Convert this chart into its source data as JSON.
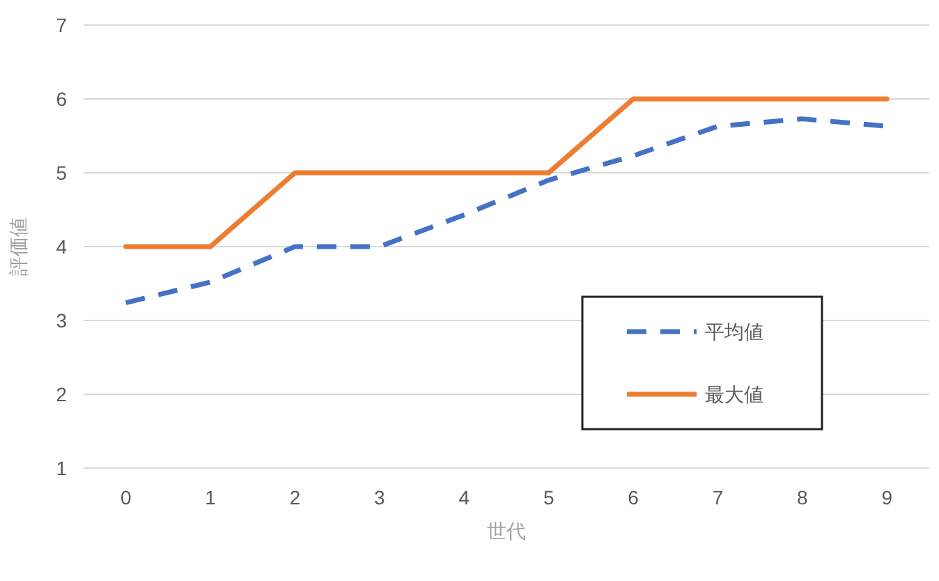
{
  "chart_data": {
    "type": "line",
    "xlabel": "世代",
    "ylabel": "評価値",
    "categories": [
      "0",
      "1",
      "2",
      "3",
      "4",
      "5",
      "6",
      "7",
      "8",
      "9"
    ],
    "series": [
      {
        "name": "平均値",
        "color": "#4472c4",
        "line_style": "dashed",
        "values": [
          3.24,
          3.52,
          4.0,
          4.0,
          4.43,
          4.9,
          5.23,
          5.63,
          5.73,
          5.63
        ]
      },
      {
        "name": "最大値",
        "color": "#ed7d31",
        "line_style": "solid",
        "values": [
          4,
          4,
          5,
          5,
          5,
          5,
          6,
          6,
          6,
          6
        ]
      }
    ],
    "ylim": [
      1,
      7
    ],
    "yticks": [
      1,
      2,
      3,
      4,
      5,
      6,
      7
    ],
    "grid": "y",
    "legend": "bottom right"
  }
}
